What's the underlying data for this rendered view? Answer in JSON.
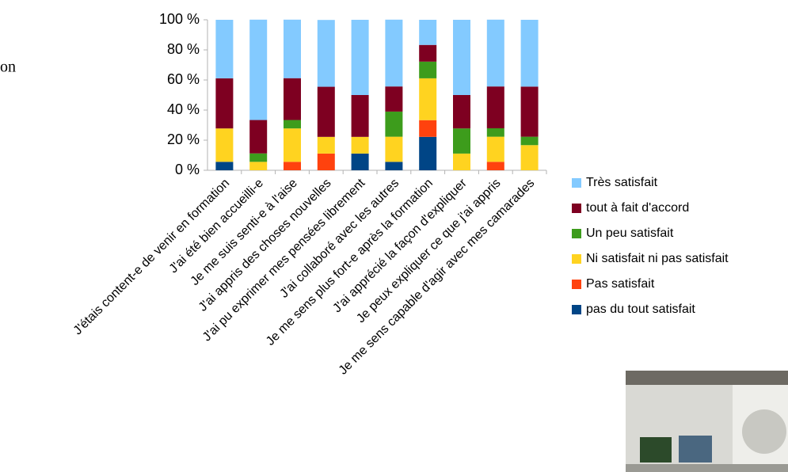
{
  "side_text": "on",
  "chart_data": {
    "type": "stacked_bar",
    "categories": [
      "J'étais content-e de venir en formation",
      "J'ai été bien accueilli-e",
      "Je me suis senti-e à l'aise",
      "J'ai appris des choses nouvelles",
      "J'ai pu exprimer mes pensées librement",
      "J'ai collaboré avec les autres",
      "Je me sens plus fort-e après la formation",
      "J'ai apprécié la façon d'expliquer",
      "Je peux expliquer ce que j'ai appris",
      "Je me sens capable d'agir avec mes  camarades"
    ],
    "series": [
      {
        "name": "pas du tout satisfait",
        "color": "#004586",
        "values": [
          5.6,
          0,
          0,
          0,
          11.1,
          5.6,
          22.2,
          0,
          0,
          0
        ]
      },
      {
        "name": "Pas satisfait",
        "color": "#ff420e",
        "values": [
          0,
          0,
          5.6,
          11.1,
          0,
          0,
          11.1,
          0,
          5.6,
          0
        ]
      },
      {
        "name": "Ni satisfait ni pas satisfait",
        "color": "#ffd320",
        "values": [
          22.2,
          5.6,
          22.2,
          11.1,
          11.1,
          16.7,
          27.8,
          11.1,
          16.7,
          16.7
        ]
      },
      {
        "name": "Un peu satisfait",
        "color": "#3d9c1c",
        "values": [
          0,
          5.6,
          5.6,
          0,
          0,
          16.7,
          11.1,
          16.7,
          5.6,
          5.6
        ]
      },
      {
        "name": "tout à fait d'accord",
        "color": "#7e0021",
        "values": [
          33.3,
          22.2,
          27.8,
          33.3,
          27.8,
          16.7,
          11.1,
          22.2,
          27.8,
          33.3
        ]
      },
      {
        "name": "Très satisfait",
        "color": "#83caff",
        "values": [
          38.9,
          66.7,
          38.9,
          44.4,
          50,
          44.4,
          16.7,
          50,
          44.4,
          44.4
        ]
      }
    ],
    "ylim": [
      0,
      100
    ],
    "yticks": [
      {
        "value": 0,
        "label": "0 %"
      },
      {
        "value": 20,
        "label": "20 %"
      },
      {
        "value": 40,
        "label": "40 %"
      },
      {
        "value": 60,
        "label": "60 %"
      },
      {
        "value": 80,
        "label": "80 %"
      },
      {
        "value": 100,
        "label": "100 %"
      }
    ],
    "legend": "right"
  }
}
